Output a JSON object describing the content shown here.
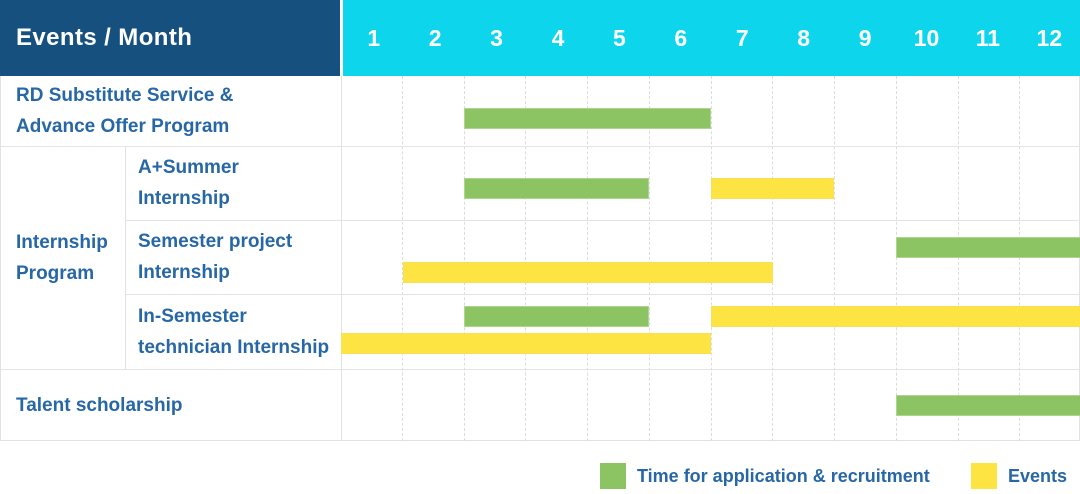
{
  "header": {
    "title": "Events / Month",
    "months": [
      "1",
      "2",
      "3",
      "4",
      "5",
      "6",
      "7",
      "8",
      "9",
      "10",
      "11",
      "12"
    ]
  },
  "colors": {
    "header_navy": "#15507F",
    "header_cyan": "#0CD5EC",
    "label_blue": "#2767A6",
    "recruitment_green": "#8CC464",
    "events_yellow": "#FDE443"
  },
  "chart_data": {
    "type": "gantt",
    "title": "Events / Month",
    "x_axis": {
      "unit": "month",
      "ticks": [
        "1",
        "2",
        "3",
        "4",
        "5",
        "6",
        "7",
        "8",
        "9",
        "10",
        "11",
        "12"
      ],
      "range": [
        1,
        12
      ]
    },
    "group_label": "Internship Program",
    "series": [
      {
        "name": "Time for application & recruitment",
        "color": "#8CC464"
      },
      {
        "name": "Events",
        "color": "#FDE443"
      }
    ],
    "rows": [
      {
        "label": "RD Substitute Service &\nAdvance Offer Program",
        "group": null,
        "bars": [
          {
            "series": 0,
            "start_month": 3,
            "end_month": 6,
            "lane": 0
          }
        ]
      },
      {
        "label": "A+Summer\nInternship",
        "group": "Internship Program",
        "bars": [
          {
            "series": 0,
            "start_month": 3,
            "end_month": 5,
            "lane": 0
          },
          {
            "series": 1,
            "start_month": 7,
            "end_month": 8,
            "lane": 0
          }
        ]
      },
      {
        "label": "Semester project\nInternship",
        "group": "Internship Program",
        "bars": [
          {
            "series": 0,
            "start_month": 10,
            "end_month": 12,
            "lane": 0
          },
          {
            "series": 1,
            "start_month": 2,
            "end_month": 7,
            "lane": 1
          }
        ]
      },
      {
        "label": "In-Semester\ntechnician Internship",
        "group": "Internship Program",
        "bars": [
          {
            "series": 0,
            "start_month": 3,
            "end_month": 5,
            "lane": 0
          },
          {
            "series": 1,
            "start_month": 7,
            "end_month": 12,
            "lane": 0
          },
          {
            "series": 1,
            "start_month": 1,
            "end_month": 6,
            "lane": 1
          }
        ]
      },
      {
        "label": "Talent scholarship",
        "group": null,
        "bars": [
          {
            "series": 0,
            "start_month": 10,
            "end_month": 12,
            "lane": 0
          }
        ]
      }
    ]
  },
  "legend": {
    "items": [
      {
        "series": 0,
        "label": "Time for application & recruitment"
      },
      {
        "series": 1,
        "label": "Events"
      }
    ]
  }
}
